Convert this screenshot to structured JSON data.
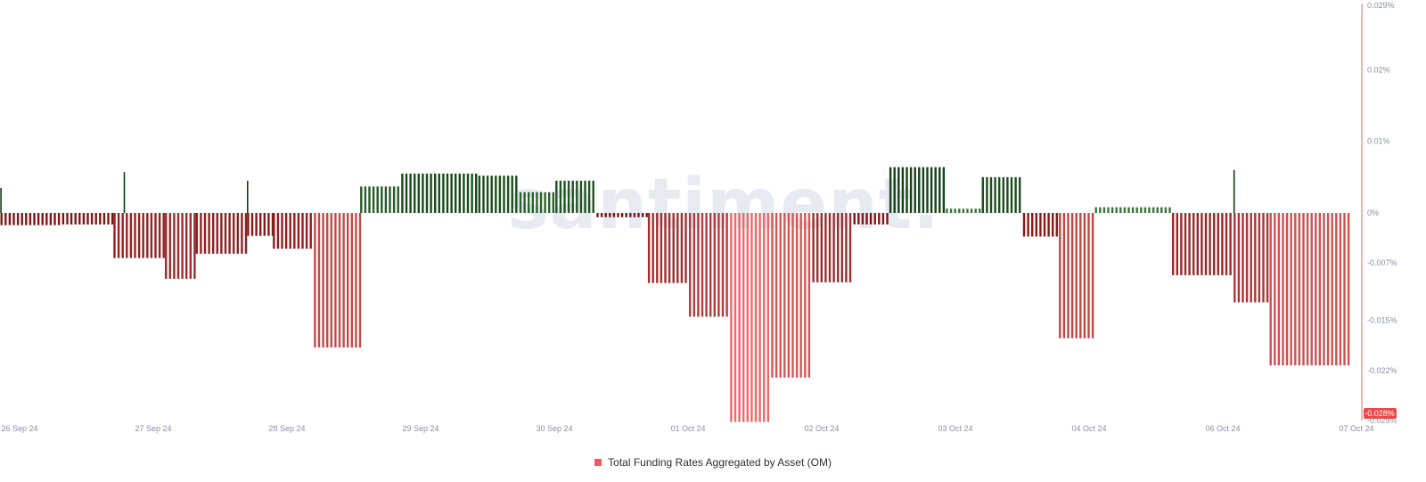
{
  "chart_data": {
    "type": "bar",
    "title": "",
    "watermark": "santiment.",
    "x_tick_labels": [
      "26 Sep 24",
      "27 Sep 24",
      "28 Sep 24",
      "29 Sep 24",
      "30 Sep 24",
      "01 Oct 24",
      "02 Oct 24",
      "03 Oct 24",
      "04 Oct 24",
      "06 Oct 24",
      "07 Oct 24"
    ],
    "y_tick_labels": [
      "0.029%",
      "0.02%",
      "0.01%",
      "0%",
      "-0.007%",
      "-0.015%",
      "-0.022%",
      "-0.029%"
    ],
    "y_tick_values": [
      0.029,
      0.02,
      0.01,
      0,
      -0.007,
      -0.015,
      -0.022,
      -0.029
    ],
    "ylim": [
      -0.029,
      0.029
    ],
    "current_value_label": "-0.028%",
    "series": [
      {
        "name": "Total Funding Rates Aggregated by Asset (OM)",
        "segments": [
          {
            "from": "26 Sep 24 00:00",
            "to": "26 Sep 24 12:00",
            "value": -0.0017
          },
          {
            "from": "26 Sep 24 12:00",
            "to": "26 Sep 24 22:00",
            "value": -0.0016
          },
          {
            "from": "26 Sep 24 22:00",
            "to": "27 Sep 24 08:00",
            "value": -0.0063
          },
          {
            "from": "27 Sep 24 08:00",
            "to": "27 Sep 24 14:00",
            "value": -0.0092
          },
          {
            "from": "27 Sep 24 14:00",
            "to": "28 Sep 24 00:00",
            "value": -0.0057
          },
          {
            "from": "28 Sep 24 00:00",
            "to": "28 Sep 24 05:00",
            "value": -0.0032
          },
          {
            "from": "28 Sep 24 05:00",
            "to": "28 Sep 24 13:00",
            "value": -0.005
          },
          {
            "from": "28 Sep 24 13:00",
            "to": "28 Sep 24 22:00",
            "value": -0.0188
          },
          {
            "from": "28 Sep 24 22:00",
            "to": "29 Sep 24 06:00",
            "value": 0.0037
          },
          {
            "from": "29 Sep 24 06:00",
            "to": "29 Sep 24 21:00",
            "value": 0.0055
          },
          {
            "from": "29 Sep 24 21:00",
            "to": "30 Sep 24 05:00",
            "value": 0.0052
          },
          {
            "from": "30 Sep 24 05:00",
            "to": "30 Sep 24 12:00",
            "value": 0.0029
          },
          {
            "from": "30 Sep 24 12:00",
            "to": "30 Sep 24 20:00",
            "value": 0.0045
          },
          {
            "from": "30 Sep 24 20:00",
            "to": "01 Oct 24 06:00",
            "value": -0.0006
          },
          {
            "from": "01 Oct 24 06:00",
            "to": "01 Oct 24 14:00",
            "value": -0.0098
          },
          {
            "from": "01 Oct 24 14:00",
            "to": "01 Oct 24 22:00",
            "value": -0.0145
          },
          {
            "from": "01 Oct 24 22:00",
            "to": "02 Oct 24 06:00",
            "value": -0.0292
          },
          {
            "from": "02 Oct 24 06:00",
            "to": "02 Oct 24 14:00",
            "value": -0.023
          },
          {
            "from": "02 Oct 24 14:00",
            "to": "02 Oct 24 22:00",
            "value": -0.0097
          },
          {
            "from": "02 Oct 24 22:00",
            "to": "03 Oct 24 05:00",
            "value": -0.0016
          },
          {
            "from": "03 Oct 24 05:00",
            "to": "03 Oct 24 16:00",
            "value": 0.0064
          },
          {
            "from": "03 Oct 24 16:00",
            "to": "03 Oct 24 23:00",
            "value": 0.0006
          },
          {
            "from": "03 Oct 24 23:00",
            "to": "04 Oct 24 07:00",
            "value": 0.005
          },
          {
            "from": "04 Oct 24 07:00",
            "to": "04 Oct 24 14:00",
            "value": -0.0033
          },
          {
            "from": "04 Oct 24 14:00",
            "to": "04 Oct 24 21:00",
            "value": -0.0175
          },
          {
            "from": "04 Oct 24 21:00",
            "to": "05 Oct 24 12:00",
            "value": 0.0008
          },
          {
            "from": "05 Oct 24 12:00",
            "to": "06 Oct 24 00:00",
            "value": -0.0087
          },
          {
            "from": "06 Oct 24 00:00",
            "to": "06 Oct 24 07:00",
            "value": -0.0125
          },
          {
            "from": "06 Oct 24 07:00",
            "to": "06 Oct 24 23:00",
            "value": -0.0213
          }
        ],
        "spikes": [
          {
            "at": "26 Sep 24 00:00",
            "value": 0.0035
          },
          {
            "at": "27 Sep 24 00:00",
            "value": 0.0057
          },
          {
            "at": "28 Sep 24 00:00",
            "value": 0.0045
          },
          {
            "at": "06 Oct 24 00:00",
            "value": 0.006
          }
        ]
      }
    ],
    "legend": {
      "label": "Total Funding Rates Aggregated by Asset (OM)",
      "placement": "bottom-center"
    },
    "colors": {
      "positive_dark": "#0f3d12",
      "positive_light": "#3f7a3e",
      "negative_dark": "#7a0f0f",
      "negative_light": "#f06a6a",
      "axis_line": "#f06a6a",
      "current_value_bg": "#e94a4a",
      "legend_swatch": "#f05a5a"
    },
    "grid": false
  }
}
